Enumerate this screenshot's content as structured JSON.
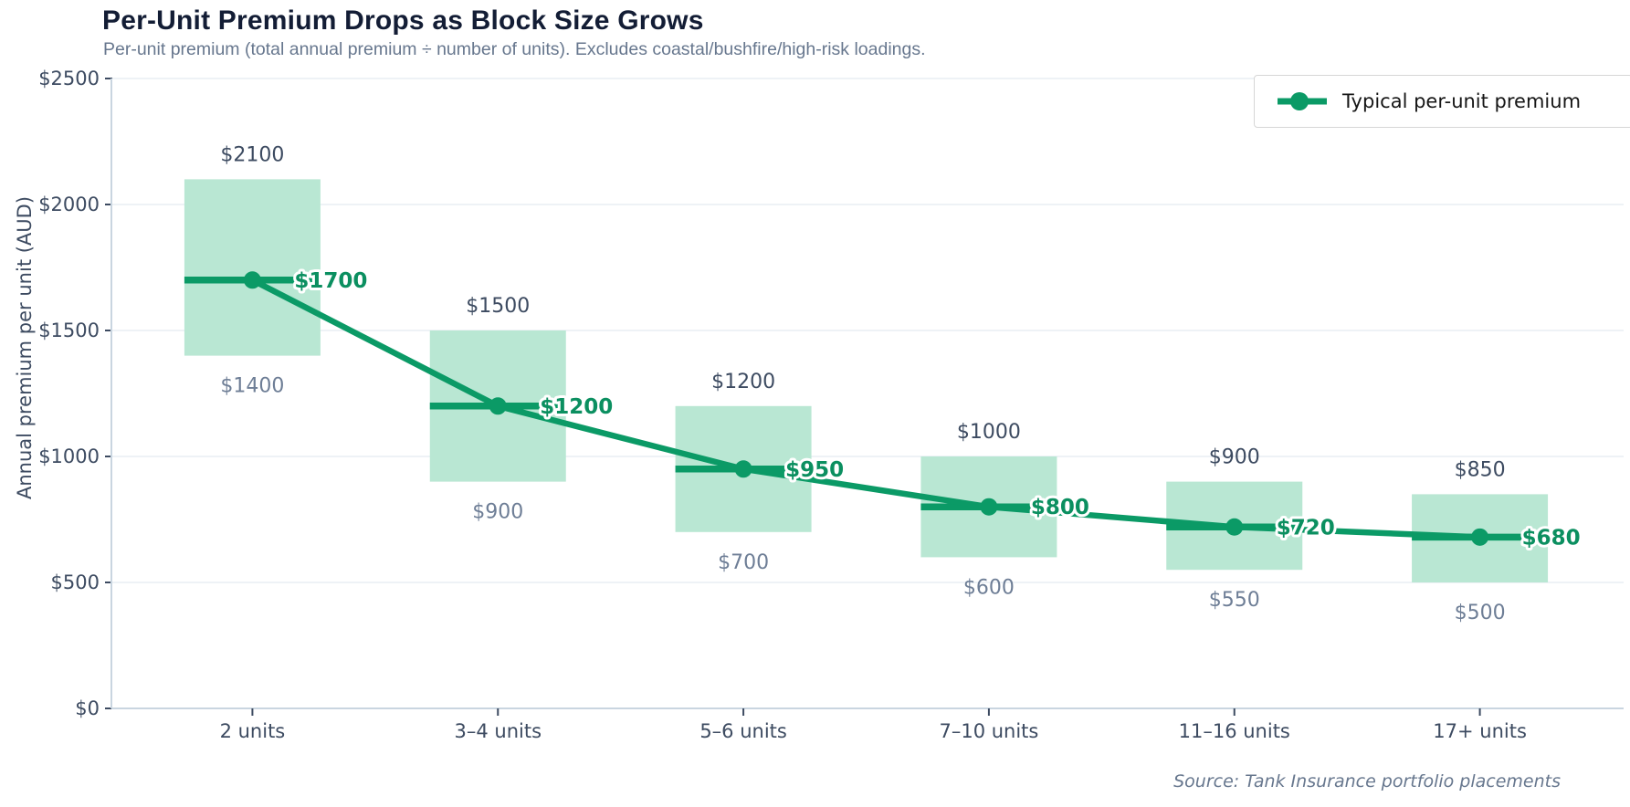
{
  "chart_data": {
    "type": "line",
    "title": "Per-Unit Premium Drops as Block Size Grows",
    "subtitle": "Per-unit premium (total annual premium ÷ number of units). Excludes coastal/bushfire/high-risk loadings.",
    "xlabel": "",
    "ylabel": "Annual premium per unit (AUD)",
    "ylim": [
      0,
      2500
    ],
    "yticks": [
      0,
      500,
      1000,
      1500,
      2000,
      2500
    ],
    "ytick_labels": [
      "$0",
      "$500",
      "$1000",
      "$1500",
      "$2000",
      "$2500"
    ],
    "grid": true,
    "legend_position": "top-right",
    "categories": [
      "2 units",
      "3–4 units",
      "5–6 units",
      "7–10 units",
      "11–16 units",
      "17+ units"
    ],
    "series": [
      {
        "name": "Typical per-unit premium",
        "values": [
          1700,
          1200,
          950,
          800,
          720,
          680
        ],
        "point_labels": [
          "$1700",
          "$1200",
          "$950",
          "$800",
          "$720",
          "$680"
        ]
      }
    ],
    "range_band": {
      "description": "typical premium range per block size",
      "high": [
        2100,
        1500,
        1200,
        1000,
        900,
        850
      ],
      "high_labels": [
        "$2100",
        "$1500",
        "$1200",
        "$1000",
        "$900",
        "$850"
      ],
      "low": [
        1400,
        900,
        700,
        600,
        550,
        500
      ],
      "low_labels": [
        "$1400",
        "$900",
        "$700",
        "$600",
        "$550",
        "$500"
      ]
    },
    "colors": {
      "line": "#0b9a66",
      "band": "#b9e7d3",
      "value_label": "#0b8f60",
      "high_label": "#3d4b61",
      "low_label": "#6e7e96",
      "axis_text": "#3d4b61",
      "title": "#131d35",
      "subtitle": "#67778e",
      "grid": "#e8eef4",
      "spine": "#c9d5e0"
    }
  },
  "footer": {
    "source_note": "Source: Tank Insurance portfolio placements"
  }
}
